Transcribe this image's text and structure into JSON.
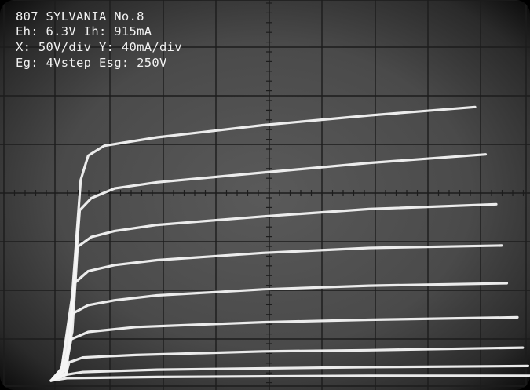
{
  "header": {
    "line1": "807 SYLVANIA No.8",
    "line2": "Eh: 6.3V Ih: 915mA",
    "line3": "X: 50V/div Y: 40mA/div",
    "line4": "Eg: 4Vstep Esg: 250V"
  },
  "colors": {
    "trace": "#f4f4f4",
    "grid": "#1c1c1c",
    "screen": "#4f4f4f"
  },
  "chart_data": {
    "type": "line",
    "title": "807 SYLVANIA No.8",
    "xlabel": "",
    "ylabel": "",
    "x_units": "V",
    "y_units": "mA",
    "x_per_div": 50,
    "y_per_div": 40,
    "xlim": [
      0,
      500
    ],
    "ylim": [
      0,
      320
    ],
    "grid": true,
    "series": [
      {
        "points": [
          [
            0,
            0
          ],
          [
            10,
            10
          ],
          [
            20,
            70
          ],
          [
            28,
            165
          ],
          [
            35,
            185
          ],
          [
            50,
            193
          ],
          [
            100,
            200
          ],
          [
            200,
            210
          ],
          [
            300,
            218
          ],
          [
            400,
            225
          ]
        ]
      },
      {
        "points": [
          [
            0,
            0
          ],
          [
            10,
            10
          ],
          [
            20,
            60
          ],
          [
            27,
            140
          ],
          [
            38,
            150
          ],
          [
            60,
            158
          ],
          [
            100,
            163
          ],
          [
            200,
            171
          ],
          [
            300,
            179
          ],
          [
            410,
            186
          ]
        ]
      },
      {
        "points": [
          [
            0,
            0
          ],
          [
            12,
            10
          ],
          [
            20,
            40
          ],
          [
            25,
            110
          ],
          [
            38,
            118
          ],
          [
            60,
            123
          ],
          [
            100,
            128
          ],
          [
            200,
            135
          ],
          [
            300,
            141
          ],
          [
            420,
            145
          ]
        ]
      },
      {
        "points": [
          [
            0,
            0
          ],
          [
            12,
            8
          ],
          [
            18,
            40
          ],
          [
            22,
            80
          ],
          [
            35,
            90
          ],
          [
            60,
            95
          ],
          [
            100,
            99
          ],
          [
            200,
            105
          ],
          [
            300,
            109
          ],
          [
            425,
            111
          ]
        ]
      },
      {
        "points": [
          [
            0,
            0
          ],
          [
            13,
            8
          ],
          [
            17,
            30
          ],
          [
            20,
            55
          ],
          [
            35,
            62
          ],
          [
            60,
            66
          ],
          [
            100,
            70
          ],
          [
            200,
            75
          ],
          [
            300,
            78
          ],
          [
            430,
            80
          ]
        ]
      },
      {
        "points": [
          [
            0,
            0
          ],
          [
            14,
            6
          ],
          [
            16,
            20
          ],
          [
            19,
            34
          ],
          [
            35,
            40
          ],
          [
            80,
            44
          ],
          [
            200,
            48
          ],
          [
            300,
            50
          ],
          [
            440,
            52
          ]
        ]
      },
      {
        "points": [
          [
            0,
            0
          ],
          [
            14,
            5
          ],
          [
            17,
            15
          ],
          [
            30,
            19
          ],
          [
            80,
            21
          ],
          [
            200,
            24
          ],
          [
            300,
            25
          ],
          [
            445,
            27
          ]
        ]
      },
      {
        "points": [
          [
            0,
            0
          ],
          [
            15,
            5
          ],
          [
            30,
            7
          ],
          [
            100,
            9
          ],
          [
            200,
            10
          ],
          [
            300,
            11
          ],
          [
            450,
            12
          ]
        ]
      },
      {
        "points": [
          [
            0,
            0
          ],
          [
            15,
            2
          ],
          [
            100,
            3
          ],
          [
            300,
            4
          ],
          [
            455,
            4
          ]
        ]
      }
    ]
  }
}
